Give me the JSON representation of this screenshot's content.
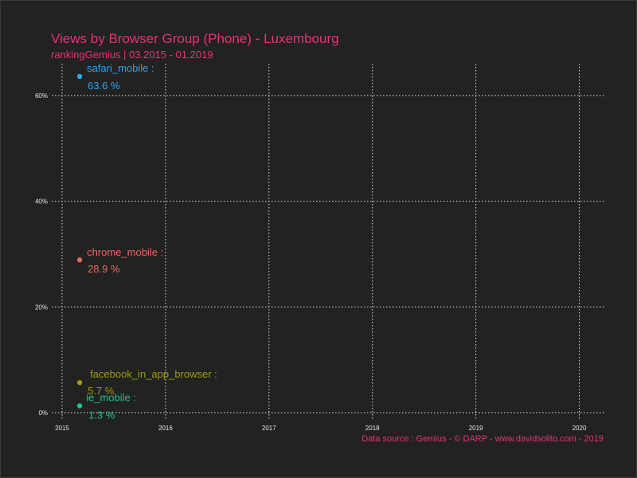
{
  "chart_data": {
    "type": "scatter",
    "title": "Views by Browser Group (Phone) - Luxembourg",
    "subtitle": "rankingGemius | 03.2015 - 01.2019",
    "caption": "Data source : Gemius - © DARP - www.davidsolito.com - 2019",
    "xlabel": "",
    "ylabel": "",
    "x_ticks": [
      "2015",
      "2016",
      "2017",
      "2018",
      "2019",
      "2020"
    ],
    "y_ticks": [
      "0%",
      "20%",
      "40%",
      "60%"
    ],
    "xlim": [
      2014.9,
      2020.25
    ],
    "ylim": [
      -1.5,
      66
    ],
    "grid": true,
    "series": [
      {
        "name": "safari_mobile",
        "x": 2015.17,
        "value": 63.6,
        "label": "safari_mobile :",
        "value_label": "63.6 %",
        "color": "#2aa4f4"
      },
      {
        "name": "chrome_mobile",
        "x": 2015.17,
        "value": 28.9,
        "label": "chrome_mobile :",
        "value_label": "28.9 %",
        "color": "#f0665e"
      },
      {
        "name": "facebook_in_app_browser",
        "x": 2015.17,
        "value": 5.7,
        "label": "facebook_in_app_browser :",
        "value_label": "5.7 %",
        "color": "#9a9d10"
      },
      {
        "name": "ie_mobile",
        "x": 2015.17,
        "value": 1.3,
        "label": "ie_mobile :",
        "value_label": "1.3 %",
        "color": "#1ec28a"
      }
    ]
  }
}
